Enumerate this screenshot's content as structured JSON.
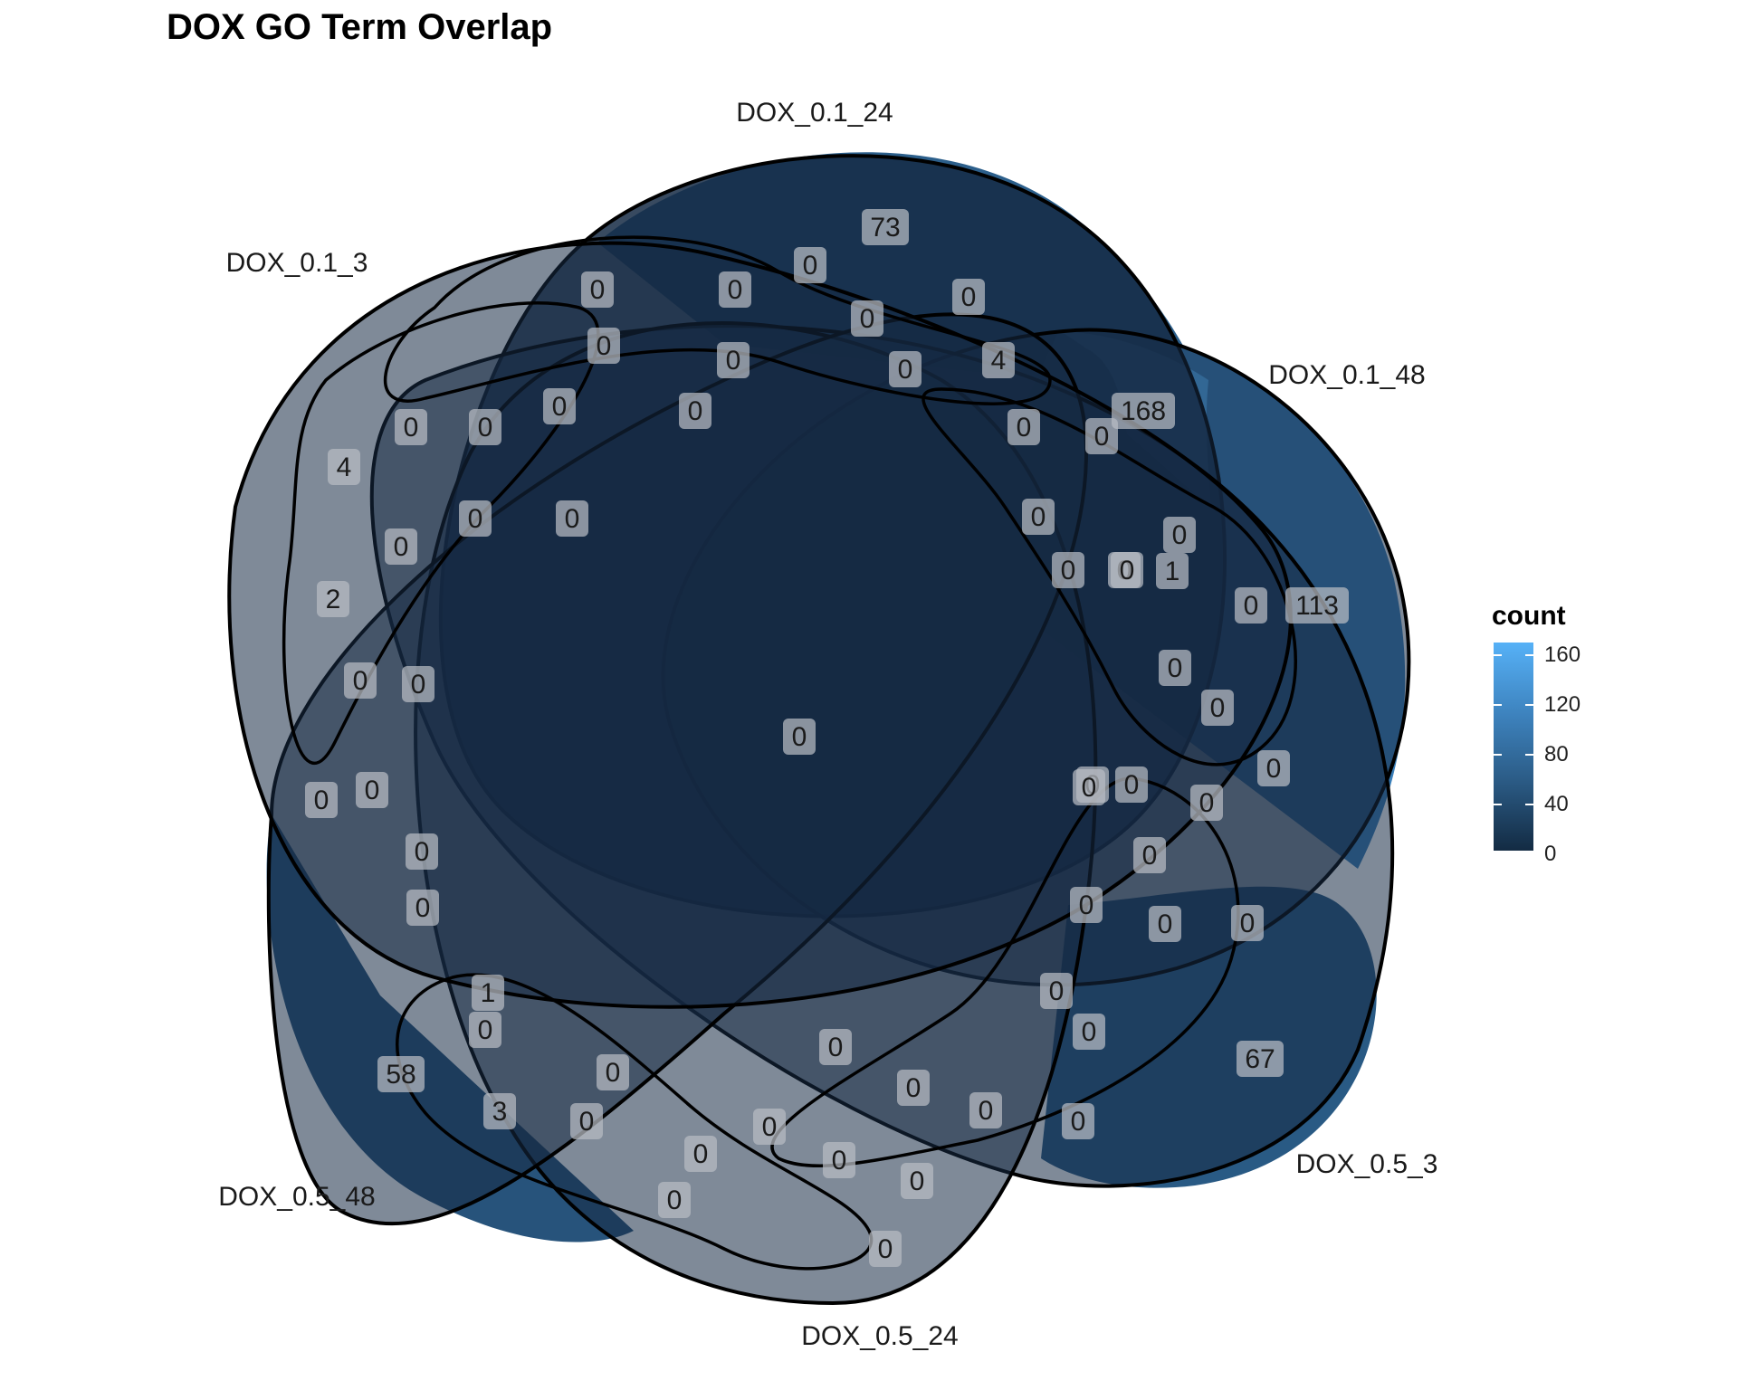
{
  "title": "DOX GO Term Overlap",
  "sets": [
    {
      "name": "DOX_0.1_24",
      "unique_count": 73
    },
    {
      "name": "DOX_0.1_48",
      "unique_count": 113
    },
    {
      "name": "DOX_0.5_3",
      "unique_count": 67
    },
    {
      "name": "DOX_0.5_24",
      "unique_count": 0
    },
    {
      "name": "DOX_0.5_48",
      "unique_count": 58
    },
    {
      "name": "DOX_0.1_3",
      "unique_count": 4
    }
  ],
  "region_counts": [
    "73",
    "0",
    "0",
    "0",
    "0",
    "0",
    "0",
    "0",
    "0",
    "4",
    "0",
    "0",
    "0",
    "0",
    "0",
    "168",
    "0",
    "4",
    "0",
    "0",
    "0",
    "0",
    "0",
    "2",
    "0",
    "1",
    "0",
    "0",
    "113",
    "0",
    "0",
    "0",
    "0",
    "0",
    "0",
    "0",
    "0",
    "0",
    "0",
    "0",
    "0",
    "0",
    "0",
    "0",
    "0",
    "0",
    "0",
    "1",
    "0",
    "0",
    "0",
    "58",
    "67",
    "0",
    "0",
    "0",
    "3",
    "0",
    "0",
    "0",
    "0",
    "0",
    "0",
    "0",
    "0",
    "0",
    "0"
  ],
  "legend": {
    "title": "count",
    "ticks": [
      "160",
      "120",
      "80",
      "40",
      "0"
    ],
    "color_low": "#132b43",
    "color_high": "#56b1f7"
  },
  "colors": {
    "zero": "#162b45",
    "c58": "#27537b",
    "c67": "#295a84",
    "c73": "#2c5f8b",
    "c113": "#3a7fb9",
    "c168": "#56b1f7",
    "outline": "#000000"
  }
}
